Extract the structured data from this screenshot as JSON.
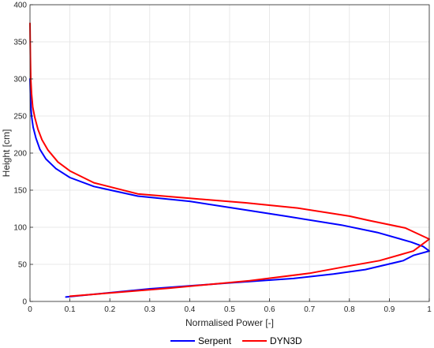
{
  "chart_data": {
    "type": "line",
    "title": "",
    "xlabel": "Normalised Power [-]",
    "ylabel": "Height [cm]",
    "xlim": [
      0,
      1
    ],
    "ylim": [
      0,
      400
    ],
    "x_ticks": [
      0,
      0.1,
      0.2,
      0.3,
      0.4,
      0.5,
      0.6,
      0.7,
      0.8,
      0.9,
      1
    ],
    "x_tick_labels": [
      "0",
      "0.1",
      "0.2",
      "0.3",
      "0.4",
      "0.5",
      "0.6",
      "0.7",
      "0.8",
      "0.9",
      "1"
    ],
    "y_ticks": [
      0,
      50,
      100,
      150,
      200,
      250,
      300,
      350,
      400
    ],
    "y_tick_labels": [
      "0",
      "50",
      "100",
      "150",
      "200",
      "250",
      "300",
      "350",
      "400"
    ],
    "grid": true,
    "legend": "bottom",
    "series": [
      {
        "name": "Serpent",
        "color": "#0000ff",
        "points": [
          [
            0.09,
            6
          ],
          [
            0.3,
            17
          ],
          [
            0.5,
            25
          ],
          [
            0.66,
            31
          ],
          [
            0.76,
            37
          ],
          [
            0.84,
            43
          ],
          [
            0.935,
            55
          ],
          [
            0.96,
            62
          ],
          [
            1.0,
            68
          ],
          [
            0.985,
            74
          ],
          [
            0.955,
            80
          ],
          [
            0.87,
            93
          ],
          [
            0.78,
            103
          ],
          [
            0.64,
            115
          ],
          [
            0.52,
            125
          ],
          [
            0.4,
            135
          ],
          [
            0.27,
            142
          ],
          [
            0.16,
            155
          ],
          [
            0.1,
            167
          ],
          [
            0.065,
            179
          ],
          [
            0.04,
            192
          ],
          [
            0.025,
            205
          ],
          [
            0.015,
            220
          ],
          [
            0.008,
            235
          ],
          [
            0.004,
            250
          ],
          [
            0.002,
            265
          ],
          [
            0.001,
            280
          ],
          [
            0,
            300
          ]
        ]
      },
      {
        "name": "DYN3D",
        "color": "#ff0000",
        "points": [
          [
            0.1,
            7
          ],
          [
            0.35,
            18
          ],
          [
            0.55,
            28
          ],
          [
            0.7,
            38
          ],
          [
            0.78,
            46
          ],
          [
            0.875,
            55
          ],
          [
            0.96,
            68
          ],
          [
            0.985,
            78
          ],
          [
            1.0,
            84
          ],
          [
            0.94,
            99
          ],
          [
            0.85,
            109
          ],
          [
            0.8,
            115
          ],
          [
            0.67,
            126
          ],
          [
            0.54,
            133
          ],
          [
            0.4,
            139
          ],
          [
            0.27,
            145
          ],
          [
            0.16,
            160
          ],
          [
            0.1,
            176
          ],
          [
            0.07,
            188
          ],
          [
            0.045,
            204
          ],
          [
            0.03,
            218
          ],
          [
            0.02,
            232
          ],
          [
            0.012,
            248
          ],
          [
            0.007,
            262
          ],
          [
            0.004,
            280
          ],
          [
            0.002,
            300
          ],
          [
            0.001,
            330
          ],
          [
            0,
            375
          ]
        ]
      }
    ]
  }
}
